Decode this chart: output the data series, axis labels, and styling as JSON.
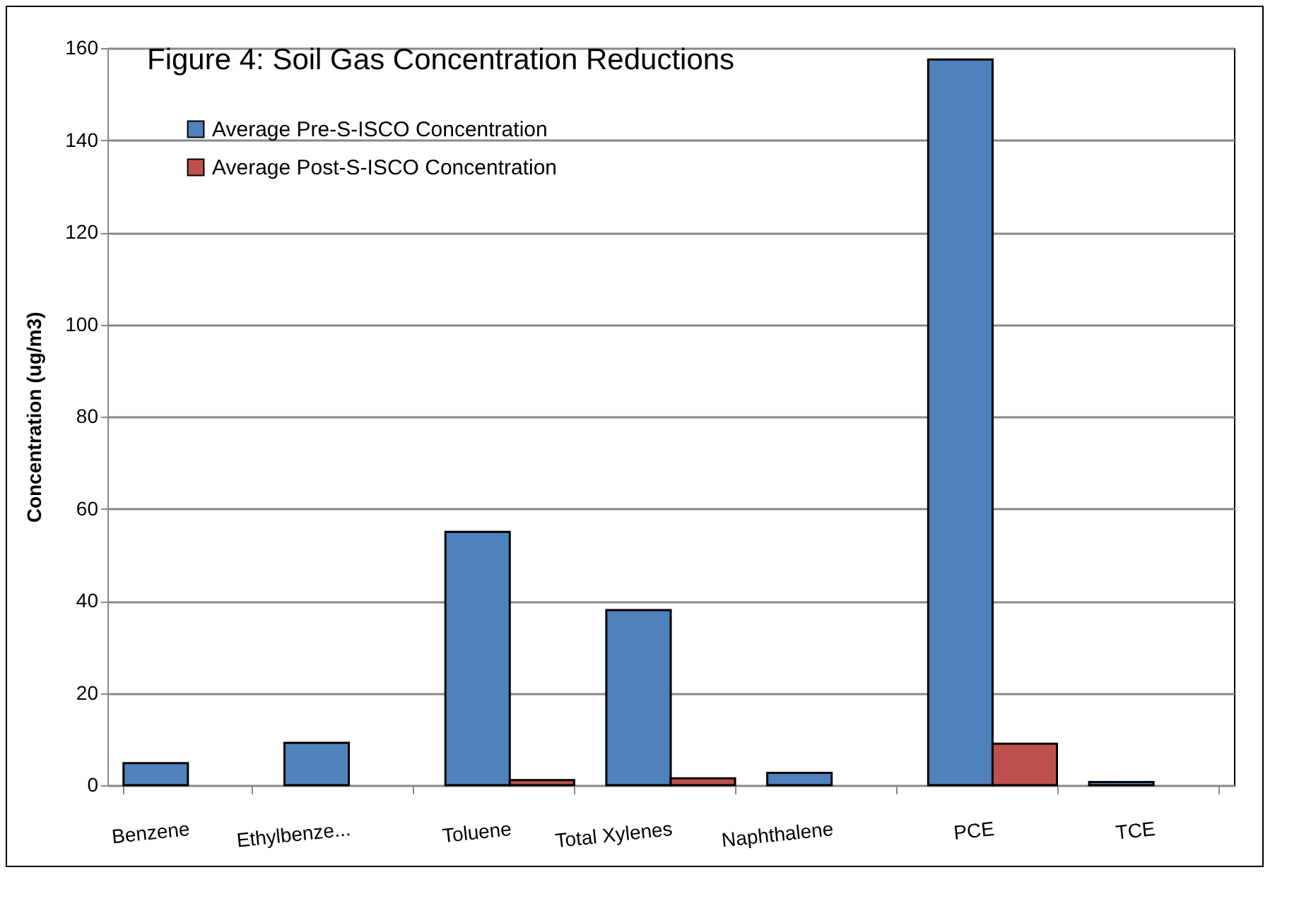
{
  "chart_data": {
    "type": "bar",
    "title": "Figure 4: Soil Gas Concentration Reductions",
    "ylabel": "Concentration (ug/m3)",
    "categories": [
      "Benzene",
      "Ethylbenze...",
      "Toluene",
      "Total Xylenes",
      "Naphthalene",
      "PCE",
      "TCE"
    ],
    "series": [
      {
        "name": "Average Pre-S-ISCO Concentration",
        "color": "#4f81bd",
        "values": [
          4.8,
          9.2,
          55,
          38,
          2.7,
          157.5,
          0.7
        ]
      },
      {
        "name": "Average Post-S-ISCO Concentration",
        "color": "#c0504d",
        "values": [
          null,
          null,
          1.1,
          1.5,
          null,
          9.0,
          null
        ]
      }
    ],
    "ylim": [
      0,
      160
    ],
    "yticks": [
      0,
      20,
      40,
      60,
      80,
      100,
      120,
      140,
      160
    ],
    "grid": "y",
    "legend": "top left"
  }
}
